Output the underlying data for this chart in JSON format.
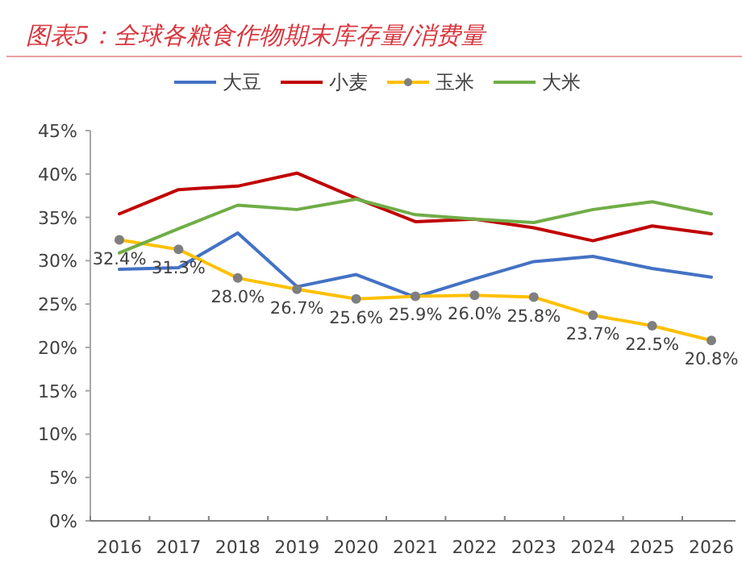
{
  "chart_data": {
    "type": "line",
    "title": "图表5：全球各粮食作物期末库存量/消费量",
    "categories": [
      "2016",
      "2017",
      "2018",
      "2019",
      "2020",
      "2021",
      "2022",
      "2023",
      "2024",
      "2025",
      "2026"
    ],
    "series": [
      {
        "name": "大豆",
        "color": "#4472c4",
        "marker": "none",
        "values": [
          29.0,
          29.2,
          33.2,
          27.0,
          28.4,
          25.8,
          27.9,
          29.9,
          30.5,
          29.1,
          28.1
        ]
      },
      {
        "name": "小麦",
        "color": "#c00000",
        "marker": "none",
        "values": [
          35.4,
          38.2,
          38.6,
          40.1,
          37.2,
          34.5,
          34.8,
          33.8,
          32.3,
          34.0,
          33.1
        ]
      },
      {
        "name": "玉米",
        "color": "#ffc000",
        "marker": "circle",
        "values": [
          32.4,
          31.3,
          28.0,
          26.7,
          25.6,
          25.9,
          26.0,
          25.8,
          23.7,
          22.5,
          20.8
        ],
        "value_labels": [
          "32.4%",
          "31.3%",
          "28.0%",
          "26.7%",
          "25.6%",
          "25.9%",
          "26.0%",
          "25.8%",
          "23.7%",
          "22.5%",
          "20.8%"
        ]
      },
      {
        "name": "大米",
        "color": "#70ad47",
        "marker": "none",
        "values": [
          30.9,
          33.7,
          36.4,
          35.9,
          37.1,
          35.3,
          34.8,
          34.4,
          35.9,
          36.8,
          35.4
        ]
      }
    ],
    "ylim": [
      0,
      45
    ],
    "yticks": [
      {
        "value": 0,
        "label": "0%"
      },
      {
        "value": 5,
        "label": "5%"
      },
      {
        "value": 10,
        "label": "10%"
      },
      {
        "value": 15,
        "label": "15%"
      },
      {
        "value": 20,
        "label": "20%"
      },
      {
        "value": 25,
        "label": "25%"
      },
      {
        "value": 30,
        "label": "30%"
      },
      {
        "value": 35,
        "label": "35%"
      },
      {
        "value": 40,
        "label": "40%"
      },
      {
        "value": 45,
        "label": "45%"
      }
    ],
    "legend": "top",
    "line_style": "solid"
  }
}
